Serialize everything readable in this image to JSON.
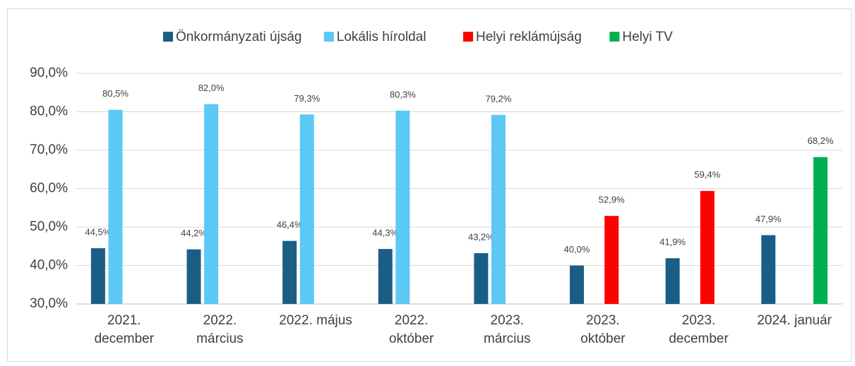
{
  "chart_data": {
    "type": "bar",
    "categories": [
      "2021.\ndecember",
      "2022.\nmárcius",
      "2022. május",
      "2022.\noktóber",
      "2023.\nmárcius",
      "2023.\noktóber",
      "2023.\ndecember",
      "2024. január"
    ],
    "series": [
      {
        "name": "Önkormányzati újság",
        "color": "#1a5e86",
        "values": [
          44.5,
          44.2,
          46.4,
          44.3,
          43.2,
          40.0,
          41.9,
          47.9
        ],
        "value_labels": [
          "44,5%",
          "44,2%",
          "46,4%",
          "44,3%",
          "43,2%",
          "40,0%",
          "41,9%",
          "47,9%"
        ]
      },
      {
        "name": "Lokális híroldal",
        "color": "#5bc8f5",
        "values": [
          80.5,
          82.0,
          79.3,
          80.3,
          79.2,
          null,
          null,
          null
        ],
        "value_labels": [
          "80,5%",
          "82,0%",
          "79,3%",
          "80,3%",
          "79,2%",
          null,
          null,
          null
        ]
      },
      {
        "name": "Helyi reklámújság",
        "color": "#ff0000",
        "values": [
          null,
          null,
          null,
          null,
          null,
          52.9,
          59.4,
          null
        ],
        "value_labels": [
          null,
          null,
          null,
          null,
          null,
          "52,9%",
          "59,4%",
          null
        ]
      },
      {
        "name": "Helyi TV",
        "color": "#00b050",
        "values": [
          null,
          null,
          null,
          null,
          null,
          null,
          null,
          68.2
        ],
        "value_labels": [
          null,
          null,
          null,
          null,
          null,
          null,
          null,
          "68,2%"
        ]
      }
    ],
    "ylim": [
      30,
      90
    ],
    "yticks": [
      {
        "value": 30,
        "label": "30,0%"
      },
      {
        "value": 40,
        "label": "40,0%"
      },
      {
        "value": 50,
        "label": "50,0%"
      },
      {
        "value": 60,
        "label": "60,0%"
      },
      {
        "value": 70,
        "label": "70,0%"
      },
      {
        "value": 80,
        "label": "80,0%"
      },
      {
        "value": 90,
        "label": "90,0%"
      }
    ],
    "grid": true,
    "legend": "top"
  }
}
